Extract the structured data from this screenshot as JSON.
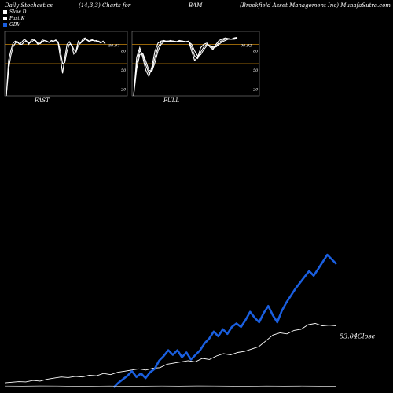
{
  "header": {
    "title": "Daily Stochastics",
    "params": "(14,3,3) Charts for",
    "symbol": "BAM",
    "company": "(Brookfield Asset Management Inc) MunafaSutra.com"
  },
  "legend": [
    {
      "label": "Slow D",
      "color": "#ffffff"
    },
    {
      "label": "Fast K",
      "color": "#ffffff"
    },
    {
      "label": "OBV",
      "color": "#1a5fe0"
    }
  ],
  "colors": {
    "obv": "#1a5fe0",
    "level_lines": "#c8860a",
    "lines": "#ffffff"
  },
  "chart_data": [
    {
      "type": "line",
      "label": "FAST",
      "last_value_label": "80.07",
      "ylim": [
        0,
        100
      ],
      "levels": [
        80,
        50,
        20
      ],
      "level_labels": [
        "80",
        "50",
        "20"
      ],
      "series": [
        {
          "values": [
            0,
            55,
            70,
            82,
            85,
            83,
            80,
            84,
            88,
            85,
            80,
            86,
            88,
            85,
            80,
            82,
            87,
            86,
            84,
            83,
            86,
            85,
            87,
            82,
            60,
            35,
            60,
            80,
            84,
            78,
            65,
            70,
            85,
            82,
            88,
            90,
            86,
            84,
            88,
            85,
            86,
            84,
            82,
            85,
            80
          ]
        },
        {
          "values": [
            0,
            40,
            62,
            76,
            82,
            84,
            80,
            80,
            84,
            85,
            82,
            83,
            86,
            86,
            82,
            81,
            84,
            86,
            85,
            83,
            84,
            85,
            86,
            84,
            70,
            50,
            52,
            70,
            80,
            80,
            72,
            68,
            78,
            82,
            85,
            88,
            87,
            85,
            86,
            86,
            85,
            85,
            83,
            84,
            82
          ]
        }
      ]
    },
    {
      "type": "line",
      "label": "FULL",
      "last_value_label": "90.92",
      "ylim": [
        0,
        100
      ],
      "levels": [
        80,
        50,
        20
      ],
      "level_labels": [
        "80",
        "50",
        "20"
      ],
      "series": [
        {
          "values": [
            0,
            60,
            75,
            60,
            40,
            30,
            45,
            70,
            82,
            85,
            86,
            84,
            86,
            85,
            84,
            86,
            85,
            84,
            85,
            70,
            55,
            60,
            75,
            80,
            82,
            76,
            72,
            80,
            86,
            88,
            90,
            89,
            88,
            90,
            91
          ]
        },
        {
          "values": [
            0,
            50,
            70,
            65,
            48,
            35,
            40,
            60,
            76,
            83,
            85,
            85,
            85,
            85,
            84,
            85,
            85,
            84,
            84,
            76,
            62,
            58,
            68,
            76,
            80,
            78,
            74,
            77,
            83,
            86,
            88,
            89,
            88,
            89,
            90
          ]
        },
        {
          "values": [
            0,
            42,
            64,
            66,
            54,
            40,
            38,
            52,
            70,
            80,
            84,
            85,
            85,
            85,
            84,
            85,
            85,
            84,
            84,
            80,
            70,
            62,
            64,
            72,
            78,
            78,
            76,
            76,
            80,
            84,
            86,
            88,
            88,
            88,
            89
          ]
        }
      ]
    },
    {
      "type": "line",
      "label": "Close",
      "last_value_label": "53.04",
      "series": [
        {
          "name": "Close",
          "values": [
            4,
            4.5,
            5,
            4.8,
            6,
            5.5,
            7,
            8,
            9,
            8.5,
            9.5,
            9,
            10.5,
            10,
            12,
            11,
            13,
            14,
            15,
            16,
            15,
            16.5,
            17,
            20,
            21,
            22,
            23,
            22,
            25,
            24,
            27,
            29,
            28,
            30,
            31,
            33,
            35,
            40,
            45,
            47,
            46,
            49,
            50,
            54,
            55,
            53,
            53.5,
            53
          ]
        },
        {
          "name": "OBV",
          "values": [
            null,
            null,
            null,
            null,
            null,
            null,
            null,
            null,
            null,
            null,
            null,
            null,
            null,
            null,
            null,
            null,
            null,
            null,
            null,
            null,
            null,
            null,
            null,
            null,
            0,
            4,
            7,
            10,
            14,
            9,
            12,
            8,
            13,
            16,
            23,
            27,
            32,
            28,
            32,
            26,
            30,
            24,
            28,
            32,
            38,
            42,
            48,
            44,
            50,
            46,
            52,
            55,
            52,
            58,
            65,
            60,
            56,
            64,
            70,
            62,
            56,
            66,
            73,
            79,
            85,
            90,
            95,
            100,
            96,
            102,
            108,
            114,
            110,
            106
          ]
        },
        {
          "name": "Flat",
          "values": [
            1.2,
            1.1,
            1.3,
            1.2,
            1.0,
            1.1,
            1.2,
            1.0,
            1.1,
            1.2,
            1.1,
            1.3,
            1.2,
            1.1,
            1.0,
            1.2,
            1.1,
            1.2,
            1.1,
            1.0
          ]
        }
      ]
    }
  ]
}
